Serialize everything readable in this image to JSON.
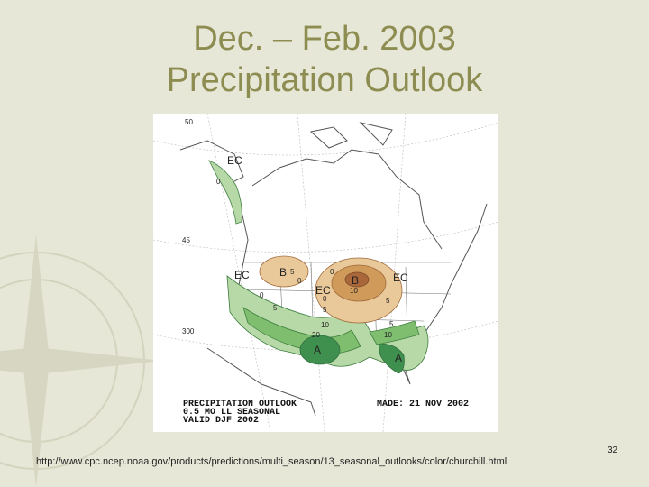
{
  "slide": {
    "title_line1": "Dec. – Feb. 2003",
    "title_line2": "Precipitation Outlook",
    "footer_url": "http://www.cpc.ncep.noaa.gov/products/predictions/multi_season/13_seasonal_outlooks/color/churchill.html",
    "slide_number": "32"
  },
  "map": {
    "region_labels": {
      "ec_alaska": "EC",
      "ec_west": "EC",
      "ec_central": "EC",
      "ec_east": "EC",
      "b_north_plains": "B",
      "b_great_lakes": "B",
      "a_texas": "A",
      "a_florida": "A"
    },
    "contour_labels": {
      "c_nw": "0",
      "c_np1": "5",
      "c_np2": "0",
      "c_gl1": "0",
      "c_gl2": "10",
      "c_gl3": "5",
      "c_sw1": "0",
      "c_sw2": "5",
      "c_c1": "0",
      "c_c2": "5",
      "c_s1": "10",
      "c_s2": "20",
      "c_se1": "5",
      "c_se2": "10"
    },
    "caption": {
      "line1": "PRECIPITATION OUTLOOK",
      "line2": "0.5 MO LL SEASONAL",
      "line3": "VALID DJF 2002",
      "made": "MADE: 21 NOV 2002"
    },
    "lat_labels": {
      "l50": "50",
      "l45": "45",
      "l300": "300"
    },
    "colors": {
      "above_light": "#b7d9a8",
      "above_mid": "#7fbe6f",
      "above_dark": "#3f8f4f",
      "below_light": "#e9c99a",
      "below_mid": "#cf9a5a",
      "below_dark": "#a9673a"
    }
  }
}
